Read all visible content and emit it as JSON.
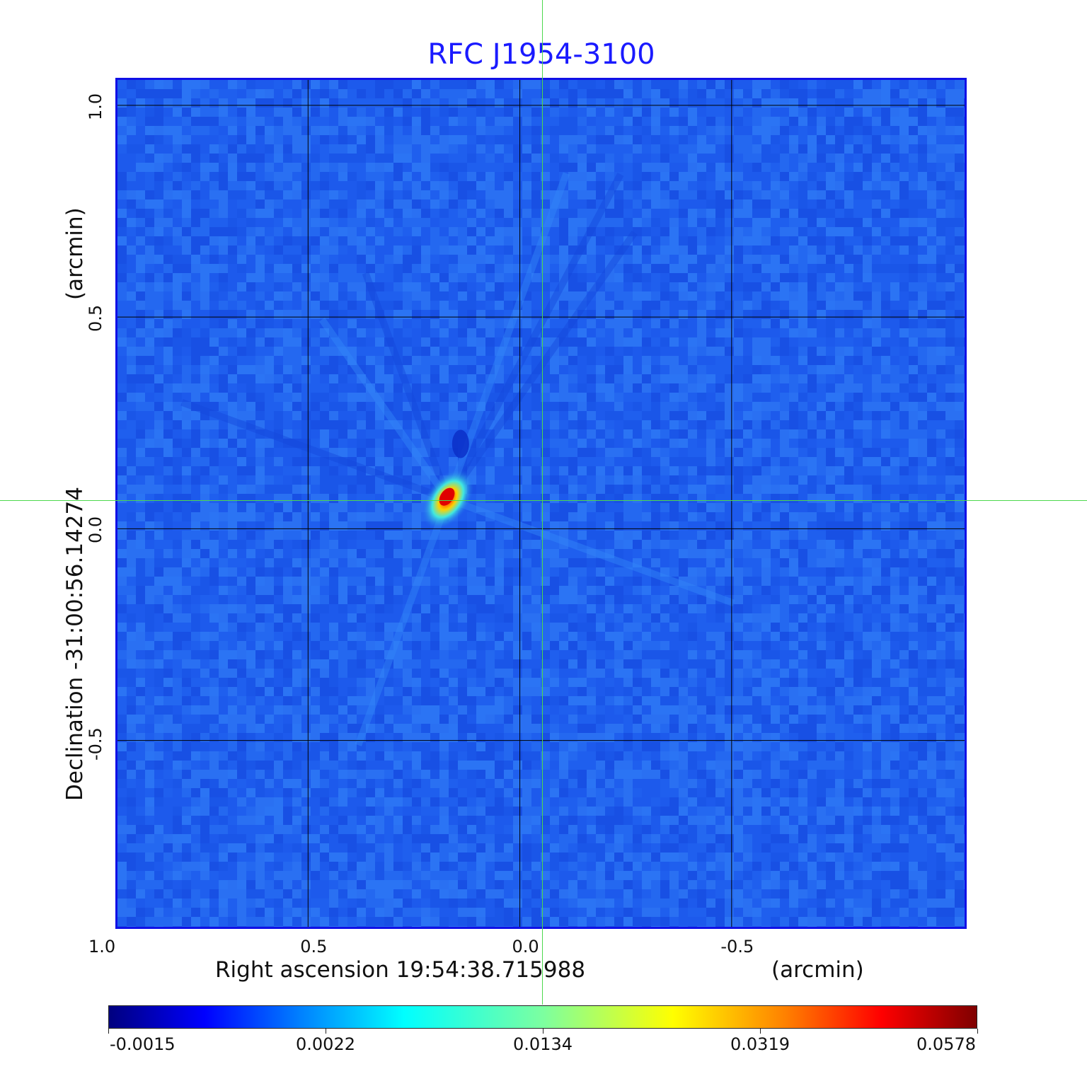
{
  "chart_data": {
    "type": "heatmap",
    "title": "RFC J1954-3100",
    "xlabel": "Right ascension  19:54:38.715988",
    "xunit": "(arcmin)",
    "ylabel": "Declination  -31:00:56.14274",
    "yunit": "(arcmin)",
    "xlim": [
      0.95,
      -1.05
    ],
    "ylim": [
      -0.94,
      1.06
    ],
    "x_ticks": [
      1.0,
      0.5,
      0.0,
      -0.5
    ],
    "x_tick_labels": [
      "1.0",
      "0.5",
      "0.0",
      "-0.5"
    ],
    "y_ticks": [
      1.0,
      0.5,
      0.0,
      -0.5
    ],
    "y_tick_labels": [
      "1.0",
      "0.5",
      "0.0",
      "-0.5"
    ],
    "grid": true,
    "colormap": "jet",
    "background_color": "#2060ee",
    "grid_color": "#000000",
    "crosshair_color": "#4dd84d",
    "source_peak": {
      "x": 0.17,
      "y": 0.07,
      "value": 0.0578
    },
    "colorbar": {
      "ticks": [
        -0.0015,
        0.0022,
        0.0134,
        0.0319,
        0.0578
      ],
      "tick_labels": [
        "-0.0015",
        "0.0022",
        "0.0134",
        "0.0319",
        "0.0578"
      ]
    }
  }
}
